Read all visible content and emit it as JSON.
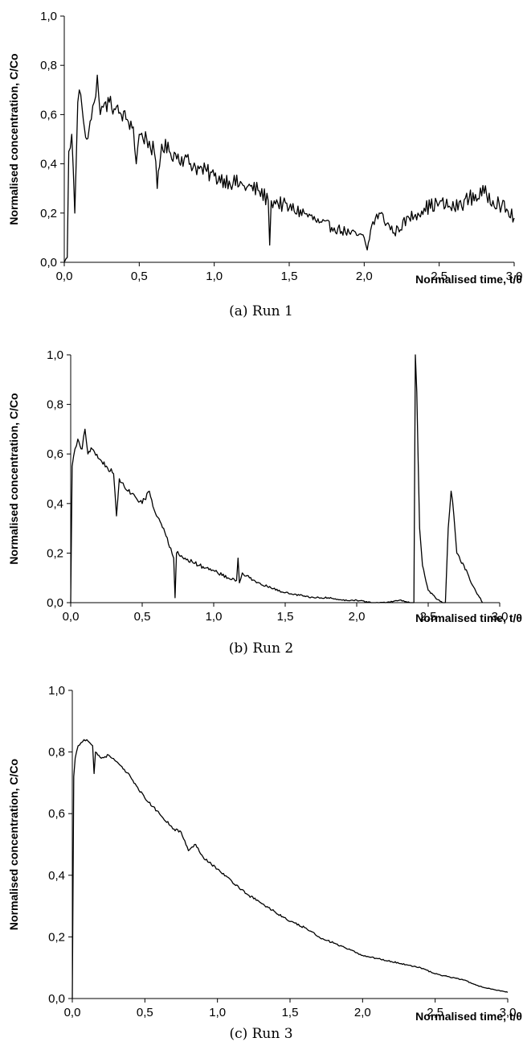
{
  "chart_data": [
    {
      "type": "line",
      "caption": "(a) Run 1",
      "xlabel": "Normalised time, t/θ",
      "ylabel": "Normalised concentration, C/Co",
      "xlim": [
        0,
        3.0
      ],
      "ylim": [
        0,
        1.0
      ],
      "xticks": [
        "0,0",
        "0,5",
        "1,0",
        "1,5",
        "2,0",
        "2,5",
        "3,0"
      ],
      "yticks": [
        "0,0",
        "0,2",
        "0,4",
        "0,6",
        "0,8",
        "1,0"
      ],
      "grid": false,
      "legend": "none",
      "series": [
        {
          "x": [
            0,
            0.02,
            0.03,
            0.05,
            0.07,
            0.09,
            0.1,
            0.12,
            0.15,
            0.18,
            0.2,
            0.22,
            0.24,
            0.26,
            0.3,
            0.34,
            0.38,
            0.42,
            0.46,
            0.48,
            0.5,
            0.55,
            0.6,
            0.62,
            0.65,
            0.7,
            0.8,
            0.9,
            1.0,
            1.1,
            1.2,
            1.3,
            1.36,
            1.37,
            1.38,
            1.4,
            1.5,
            1.6,
            1.7,
            1.8,
            1.9,
            2.0,
            2.02,
            2.05,
            2.1,
            2.2,
            2.3,
            2.4,
            2.5,
            2.6,
            2.7,
            2.8,
            2.9,
            3.0
          ],
          "values": [
            0.0,
            0.02,
            0.45,
            0.52,
            0.2,
            0.65,
            0.7,
            0.62,
            0.5,
            0.58,
            0.65,
            0.76,
            0.6,
            0.63,
            0.65,
            0.62,
            0.6,
            0.58,
            0.55,
            0.4,
            0.52,
            0.5,
            0.45,
            0.3,
            0.48,
            0.45,
            0.42,
            0.38,
            0.35,
            0.33,
            0.31,
            0.29,
            0.25,
            0.07,
            0.25,
            0.25,
            0.22,
            0.2,
            0.16,
            0.14,
            0.12,
            0.1,
            0.05,
            0.15,
            0.2,
            0.12,
            0.18,
            0.22,
            0.24,
            0.22,
            0.26,
            0.28,
            0.24,
            0.18
          ]
        }
      ]
    },
    {
      "type": "line",
      "caption": "(b) Run 2",
      "xlabel": "Normalised time, t/θ",
      "ylabel": "Normalised concentration, C/Co",
      "xlim": [
        0,
        3.0
      ],
      "ylim": [
        0,
        1.0
      ],
      "xticks": [
        "0,0",
        "0,5",
        "1,0",
        "1,5",
        "2,0",
        "2,5",
        "3,0"
      ],
      "yticks": [
        "0,0",
        "0,2",
        "0,4",
        "0,6",
        "0,8",
        "1,0"
      ],
      "grid": false,
      "legend": "none",
      "series": [
        {
          "x": [
            0,
            0.01,
            0.03,
            0.05,
            0.08,
            0.1,
            0.12,
            0.15,
            0.2,
            0.3,
            0.32,
            0.34,
            0.4,
            0.5,
            0.55,
            0.6,
            0.65,
            0.7,
            0.72,
            0.73,
            0.74,
            0.8,
            0.9,
            1.0,
            1.1,
            1.16,
            1.17,
            1.18,
            1.2,
            1.25,
            1.3,
            1.4,
            1.5,
            1.6,
            1.7,
            1.8,
            1.9,
            2.0,
            2.1,
            2.2,
            2.3,
            2.38,
            2.4,
            2.41,
            2.42,
            2.44,
            2.46,
            2.5,
            2.55,
            2.6,
            2.62,
            2.64,
            2.66,
            2.68,
            2.7,
            2.75,
            2.8,
            2.85,
            2.88
          ],
          "values": [
            0.0,
            0.55,
            0.62,
            0.66,
            0.62,
            0.7,
            0.6,
            0.62,
            0.58,
            0.52,
            0.35,
            0.5,
            0.45,
            0.4,
            0.45,
            0.35,
            0.3,
            0.22,
            0.18,
            0.02,
            0.2,
            0.18,
            0.15,
            0.13,
            0.1,
            0.09,
            0.18,
            0.08,
            0.12,
            0.1,
            0.08,
            0.06,
            0.04,
            0.03,
            0.02,
            0.02,
            0.01,
            0.01,
            0.0,
            0.0,
            0.01,
            0.0,
            0.0,
            1.0,
            0.85,
            0.3,
            0.15,
            0.05,
            0.02,
            0.0,
            0.0,
            0.3,
            0.45,
            0.35,
            0.2,
            0.15,
            0.08,
            0.03,
            0.0
          ]
        }
      ]
    },
    {
      "type": "line",
      "caption": "(c) Run 3",
      "xlabel": "Normalised time, t/θ",
      "ylabel": "Normalised concentration, C/Co",
      "xlim": [
        0,
        3.0
      ],
      "ylim": [
        0,
        1.0
      ],
      "xticks": [
        "0,0",
        "0,5",
        "1,0",
        "1,5",
        "2,0",
        "2,5",
        "3,0"
      ],
      "yticks": [
        "0,0",
        "0,2",
        "0,4",
        "0,6",
        "0,8",
        "1,0"
      ],
      "grid": false,
      "legend": "none",
      "series": [
        {
          "x": [
            0,
            0.01,
            0.02,
            0.04,
            0.06,
            0.08,
            0.1,
            0.12,
            0.14,
            0.15,
            0.16,
            0.2,
            0.25,
            0.3,
            0.4,
            0.5,
            0.6,
            0.7,
            0.75,
            0.8,
            0.85,
            0.9,
            1.0,
            1.1,
            1.2,
            1.3,
            1.4,
            1.5,
            1.6,
            1.7,
            1.8,
            1.9,
            2.0,
            2.1,
            2.2,
            2.3,
            2.4,
            2.5,
            2.6,
            2.7,
            2.8,
            2.9,
            3.0
          ],
          "values": [
            0.0,
            0.72,
            0.78,
            0.82,
            0.83,
            0.84,
            0.84,
            0.83,
            0.82,
            0.73,
            0.8,
            0.78,
            0.79,
            0.77,
            0.72,
            0.65,
            0.6,
            0.55,
            0.54,
            0.48,
            0.5,
            0.46,
            0.42,
            0.38,
            0.34,
            0.31,
            0.28,
            0.25,
            0.23,
            0.2,
            0.18,
            0.16,
            0.14,
            0.13,
            0.12,
            0.11,
            0.1,
            0.08,
            0.07,
            0.06,
            0.04,
            0.03,
            0.02
          ]
        }
      ]
    }
  ]
}
